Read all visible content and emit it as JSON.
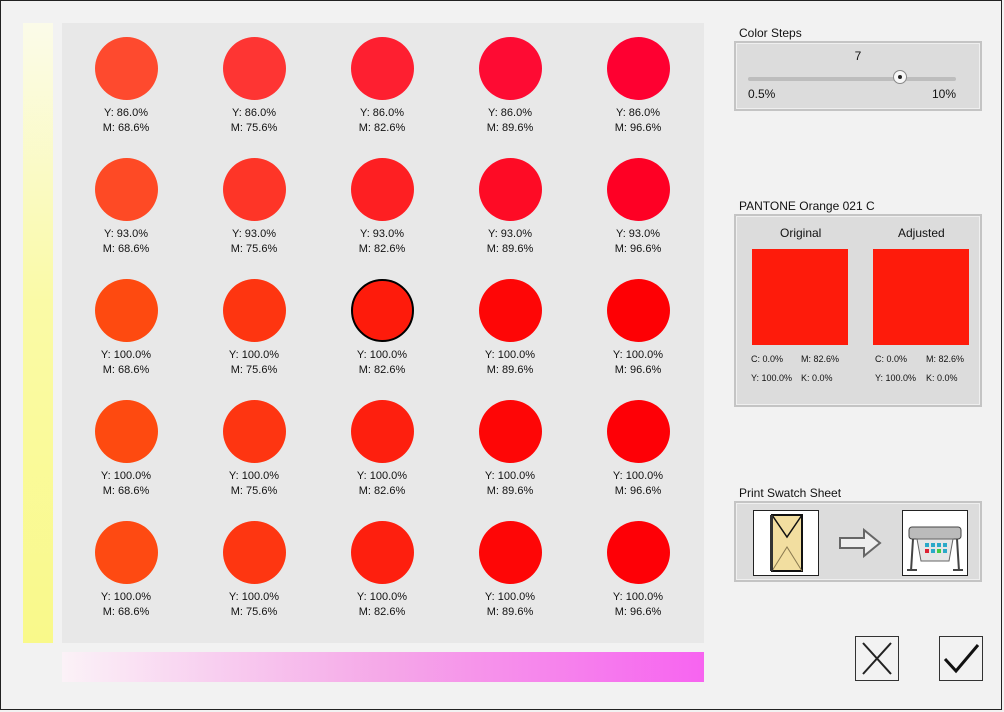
{
  "grid": {
    "selected": {
      "row": 2,
      "col": 2
    },
    "rows": [
      {
        "y": "Y: 86.0%",
        "colors": [
          "#fe4a2e",
          "#fe3533",
          "#fe1f30",
          "#fe0b33",
          "#fe0031"
        ]
      },
      {
        "y": "Y: 93.0%",
        "colors": [
          "#fe4a25",
          "#fe3527",
          "#fe1f22",
          "#fe0b25",
          "#fe0024"
        ]
      },
      {
        "y": "Y: 100.0%",
        "colors": [
          "#fe4a10",
          "#fe3510",
          "#fe1b0b",
          "#fe0606",
          "#fe0004"
        ]
      },
      {
        "y": "Y: 100.0%",
        "colors": [
          "#fe4a10",
          "#fe3511",
          "#fe1f0e",
          "#fe0606",
          "#fe0006"
        ]
      },
      {
        "y": "Y: 100.0%",
        "colors": [
          "#fe4a12",
          "#fe3611",
          "#fe1f0e",
          "#fe0606",
          "#fe0006"
        ]
      }
    ],
    "m_labels": [
      "M: 68.6%",
      "M: 75.6%",
      "M: 82.6%",
      "M: 89.6%",
      "M: 96.6%"
    ]
  },
  "color_steps": {
    "label": "Color Steps",
    "value": "7",
    "level": 0.73,
    "min": "0.5%",
    "max": "10%"
  },
  "pantone": {
    "label": "PANTONE Orange 021 C",
    "original": {
      "label": "Original",
      "color": "#fe1b0b",
      "c": "C: 0.0%",
      "m": "M: 82.6%",
      "y": "Y: 100.0%",
      "k": "K: 0.0%"
    },
    "adjusted": {
      "label": "Adjusted",
      "color": "#fe1b0b",
      "c": "C: 0.0%",
      "m": "M: 82.6%",
      "y": "Y: 100.0%",
      "k": "K: 0.0%"
    }
  },
  "print": {
    "label": "Print Swatch Sheet",
    "icons": [
      "envelope-icon",
      "arrow-right-icon",
      "plotter-printer-icon"
    ]
  },
  "buttons": {
    "cancel_icon": "close-x-icon",
    "ok_icon": "checkmark-icon"
  }
}
